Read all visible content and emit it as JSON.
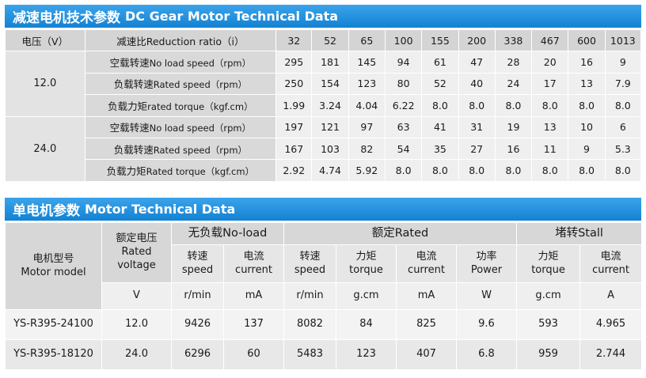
{
  "table1": {
    "title_cn": "减速电机技术参数",
    "title_en": "DC Gear Motor Technical Data",
    "voltage_header": "电压（V）",
    "ratio_header": "减速比Reduction ratio（i）",
    "ratios": [
      "32",
      "52",
      "65",
      "100",
      "155",
      "200",
      "338",
      "467",
      "600",
      "1013"
    ],
    "groups": [
      {
        "voltage": "12.0",
        "rows": [
          {
            "cn": "空载转速",
            "en": "No load speed（rpm）",
            "values": [
              "295",
              "181",
              "145",
              "94",
              "61",
              "47",
              "28",
              "20",
              "16",
              "9"
            ]
          },
          {
            "cn": "负载转速",
            "en": "Rated speed（rpm）",
            "values": [
              "250",
              "154",
              "123",
              "80",
              "52",
              "40",
              "24",
              "17",
              "13",
              "7.9"
            ]
          },
          {
            "cn": "负载力矩",
            "en": "rated torque（kgf.cm）",
            "values": [
              "1.99",
              "3.24",
              "4.04",
              "6.22",
              "8.0",
              "8.0",
              "8.0",
              "8.0",
              "8.0",
              "8.0"
            ]
          }
        ]
      },
      {
        "voltage": "24.0",
        "rows": [
          {
            "cn": "空载转速",
            "en": "No load speed（rpm）",
            "values": [
              "197",
              "121",
              "97",
              "63",
              "41",
              "31",
              "19",
              "13",
              "10",
              "6"
            ]
          },
          {
            "cn": "负载转速",
            "en": "Rated speed（rpm）",
            "values": [
              "167",
              "103",
              "82",
              "54",
              "35",
              "27",
              "16",
              "11",
              "9",
              "5.3"
            ]
          },
          {
            "cn": "负载力矩",
            "en": "Rated torque（kgf.cm）",
            "values": [
              "2.92",
              "4.74",
              "5.92",
              "8.0",
              "8.0",
              "8.0",
              "8.0",
              "8.0",
              "8.0",
              "8.0"
            ]
          }
        ]
      }
    ]
  },
  "table2": {
    "title_cn": "单电机参数",
    "title_en": "Motor Technical Data",
    "model_cn": "电机型号",
    "model_en": "Motor model",
    "rated_voltage_cn": "额定电压",
    "rated_voltage_en_1": "Rated",
    "rated_voltage_en_2": "voltage",
    "no_load": "无负载No-load",
    "rated": "额定Rated",
    "stall": "堵转Stall",
    "subheaders": [
      {
        "cn": "转速",
        "en": "speed"
      },
      {
        "cn": "电流",
        "en": "current"
      },
      {
        "cn": "转速",
        "en": "speed"
      },
      {
        "cn": "力矩",
        "en": "torque"
      },
      {
        "cn": "电流",
        "en": "current"
      },
      {
        "cn": "功率",
        "en": "Power"
      },
      {
        "cn": "力矩",
        "en": "torque"
      },
      {
        "cn": "电流",
        "en": "current"
      }
    ],
    "units": [
      "V",
      "r/min",
      "mA",
      "r/min",
      "g.cm",
      "mA",
      "W",
      "g.cm",
      "A"
    ],
    "rows": [
      {
        "model": "YS-R395-24100",
        "values": [
          "12.0",
          "9426",
          "137",
          "8082",
          "84",
          "825",
          "9.6",
          "593",
          "4.965"
        ]
      },
      {
        "model": "YS-R395-18120",
        "values": [
          "24.0",
          "6296",
          "60",
          "5483",
          "123",
          "407",
          "6.8",
          "959",
          "2.744"
        ]
      }
    ]
  }
}
